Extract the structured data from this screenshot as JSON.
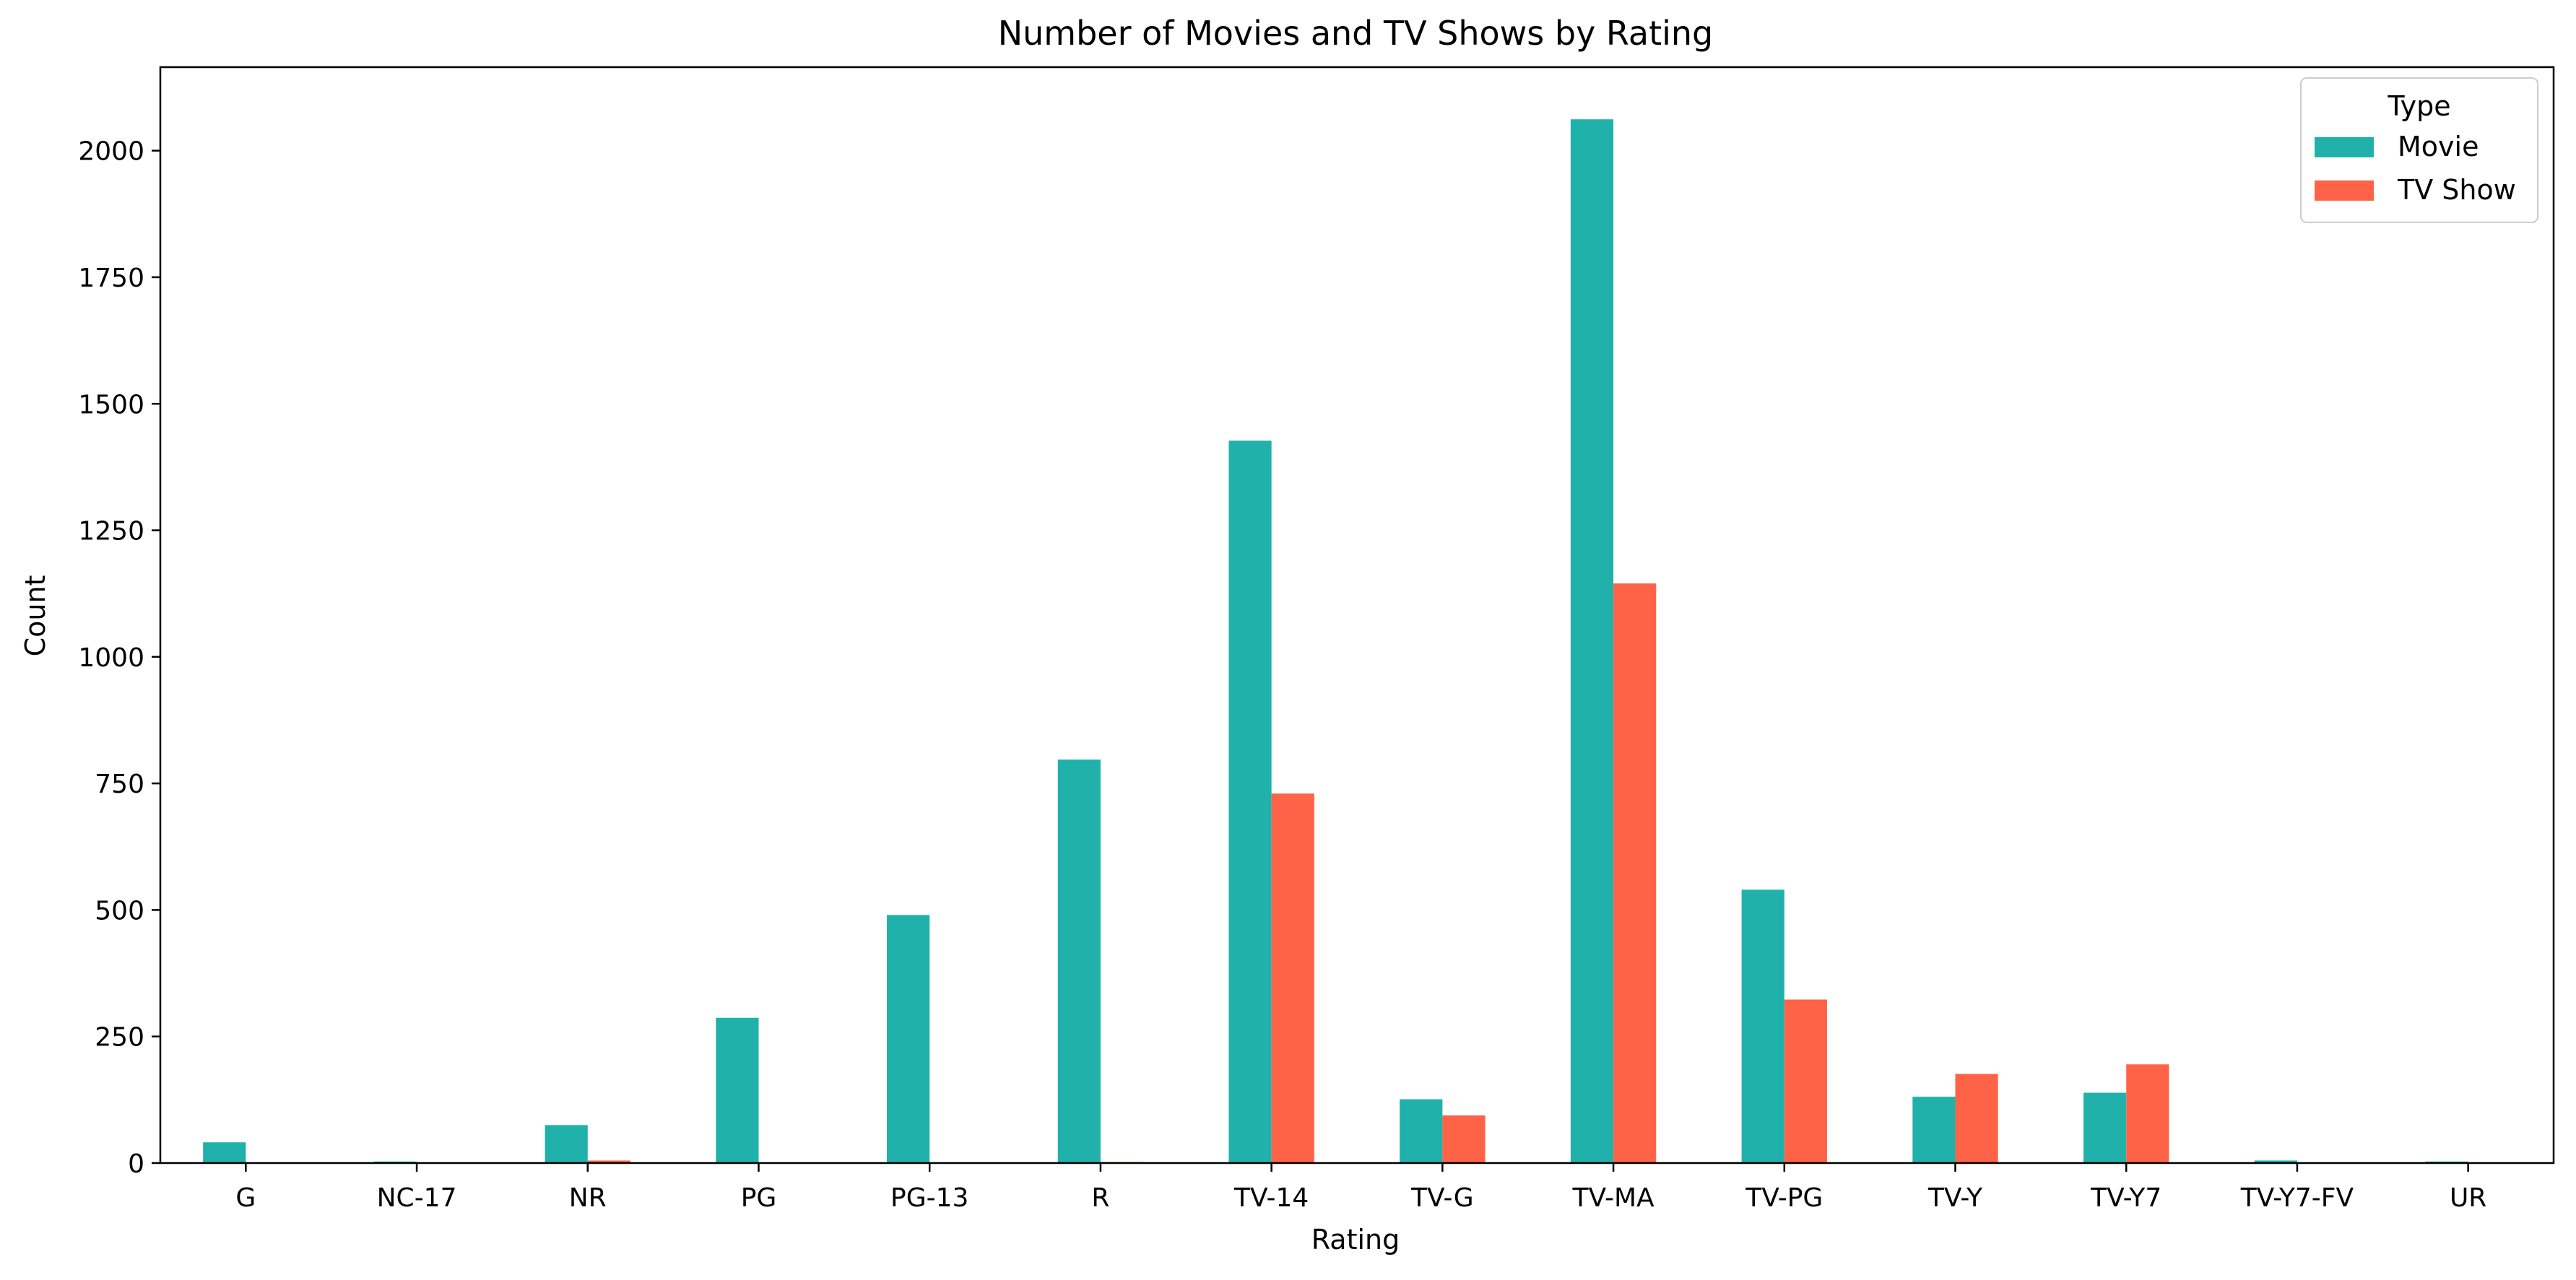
{
  "chart_data": {
    "type": "bar",
    "title": "Number of Movies and TV Shows by Rating",
    "xlabel": "Rating",
    "ylabel": "Count",
    "categories": [
      "G",
      "NC-17",
      "NR",
      "PG",
      "PG-13",
      "R",
      "TV-14",
      "TV-G",
      "TV-MA",
      "TV-PG",
      "TV-Y",
      "TV-Y7",
      "TV-Y7-FV",
      "UR"
    ],
    "series": [
      {
        "name": "Movie",
        "color": "#20B2AA",
        "values": [
          41,
          3,
          75,
          287,
          490,
          797,
          1427,
          126,
          2062,
          540,
          131,
          139,
          5,
          3
        ]
      },
      {
        "name": "TV Show",
        "color": "#FF6347",
        "values": [
          0,
          0,
          5,
          0,
          0,
          2,
          730,
          94,
          1145,
          323,
          176,
          195,
          1,
          0
        ]
      }
    ],
    "yticks": [
      0,
      250,
      500,
      750,
      1000,
      1250,
      1500,
      1750,
      2000
    ],
    "ylim": [
      0,
      2165
    ],
    "legend": {
      "title": "Type",
      "position": "top-right"
    },
    "grid": false
  }
}
